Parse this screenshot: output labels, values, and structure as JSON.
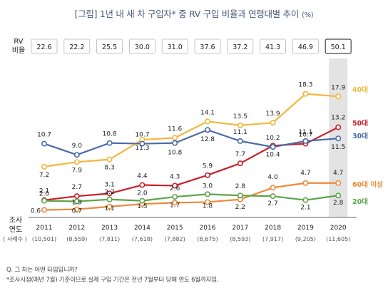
{
  "title": "[그림]  1년 내 새 차 구입자* 중 RV 구입 비율과 연령대별 추이",
  "unit": "(%)",
  "rv_label_line1": "RV",
  "rv_label_line2": "비율",
  "survey_label_line1": "조사",
  "survey_label_line2": "연도",
  "sample_label": "( 사례수 )",
  "notes": [
    "Q. 그 차는 어떤 타입입니까?",
    "*조사시점(매년 7월) 기준이므로 실제 구입 기간은 전년 7월부터 당해 연도 6월까지임."
  ],
  "colors": {
    "40s": "#f3b73b",
    "50s": "#c8202a",
    "30s": "#4b6aa8",
    "60s": "#ec8a3a",
    "20s": "#5ea44a",
    "highlight": "#d9d9d9"
  },
  "chart_data": {
    "type": "line",
    "categories": [
      "2011",
      "2012",
      "2013",
      "2014",
      "2015",
      "2016",
      "2017",
      "2018",
      "2019",
      "2020"
    ],
    "sample_sizes": [
      "(10,501)",
      "(8,559)",
      "(7,811)",
      "(7,618)",
      "(7,882)",
      "(8,675)",
      "(8,593)",
      "(7,917)",
      "(9,205)",
      "(11,605)"
    ],
    "rv_ratio": [
      "22.6",
      "22.2",
      "25.5",
      "30.0",
      "31.0",
      "37.6",
      "37.2",
      "41.3",
      "46.9",
      "50.1"
    ],
    "highlight_category": "2020",
    "series": [
      {
        "name": "40대",
        "key": "40s",
        "values": [
          7.2,
          7.9,
          8.3,
          11.3,
          11.6,
          14.1,
          13.5,
          13.9,
          18.3,
          17.9
        ]
      },
      {
        "name": "50대",
        "key": "50s",
        "values": [
          2.1,
          2.7,
          3.1,
          4.4,
          4.3,
          5.9,
          7.7,
          10.4,
          10.7,
          13.2
        ]
      },
      {
        "name": "30대",
        "key": "30s",
        "values": [
          10.7,
          9.0,
          10.8,
          10.7,
          10.8,
          12.8,
          11.1,
          10.2,
          11.1,
          11.5
        ]
      },
      {
        "name": "60대 이상",
        "key": "60s",
        "values": [
          0.6,
          0.7,
          1.1,
          1.5,
          1.7,
          1.8,
          2.2,
          4.0,
          4.7,
          4.7
        ]
      },
      {
        "name": "20대",
        "key": "20s",
        "values": [
          2.0,
          1.9,
          2.2,
          2.0,
          2.6,
          3.0,
          2.8,
          2.7,
          2.1,
          2.8
        ]
      }
    ],
    "ylim": [
      0,
      19
    ],
    "grid": false,
    "legend": "right"
  }
}
